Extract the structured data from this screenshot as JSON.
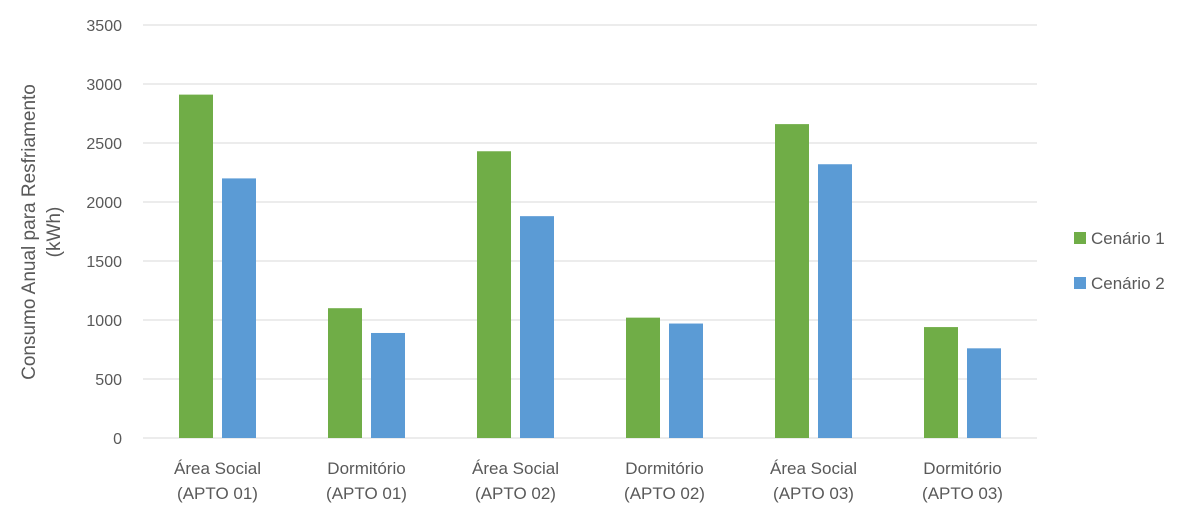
{
  "chart_data": {
    "type": "bar",
    "ylabel_lines": [
      "Consumo Anual para Resfriamento",
      "(kWh)"
    ],
    "categories": [
      [
        "Área Social",
        "(APTO 01)"
      ],
      [
        "Dormitório",
        "(APTO 01)"
      ],
      [
        "Área Social",
        "(APTO 02)"
      ],
      [
        "Dormitório",
        "(APTO 02)"
      ],
      [
        "Área Social",
        "(APTO 03)"
      ],
      [
        "Dormitório",
        "(APTO 03)"
      ]
    ],
    "series": [
      {
        "name": "Cenário 1",
        "color": "#70ad47",
        "values": [
          2910,
          1100,
          2430,
          1020,
          2660,
          940
        ]
      },
      {
        "name": "Cenário 2",
        "color": "#5b9bd5",
        "values": [
          2200,
          890,
          1880,
          970,
          2320,
          760
        ]
      }
    ],
    "ylim": [
      0,
      3500
    ],
    "yticks": [
      0,
      500,
      1000,
      1500,
      2000,
      2500,
      3000,
      3500
    ],
    "grid": true,
    "gridColor": "#d9d9d9",
    "legend": "right"
  }
}
